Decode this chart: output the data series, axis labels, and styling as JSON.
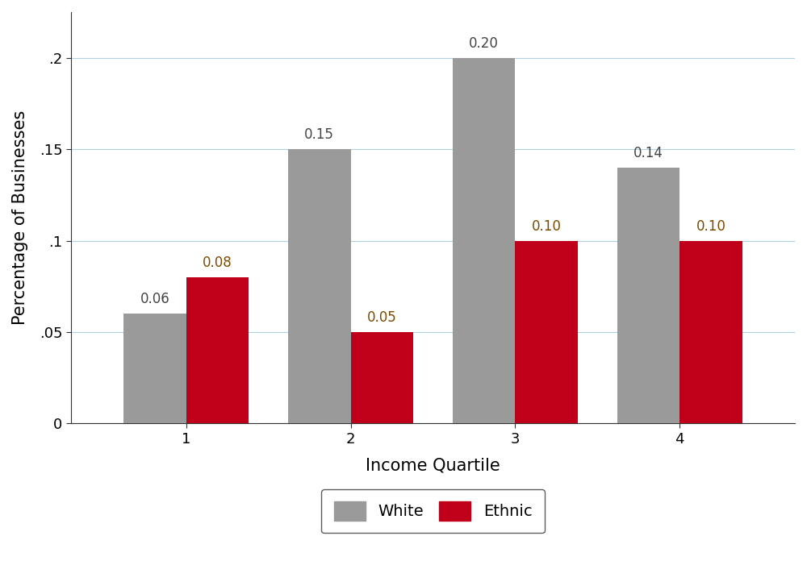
{
  "categories": [
    1,
    2,
    3,
    4
  ],
  "white_values": [
    0.06,
    0.15,
    0.2,
    0.14
  ],
  "ethnic_values": [
    0.08,
    0.05,
    0.1,
    0.1
  ],
  "white_color": "#9A9A9A",
  "ethnic_color": "#C0001A",
  "xlabel": "Income Quartile",
  "ylabel": "Percentage of Businesses",
  "ylim": [
    0,
    0.225
  ],
  "yticks": [
    0,
    0.05,
    0.1,
    0.15,
    0.2
  ],
  "ytick_labels": [
    "0",
    ".05",
    ".1",
    ".15",
    ".2"
  ],
  "bar_width": 0.38,
  "legend_labels": [
    "White",
    "Ethnic"
  ],
  "label_fontsize": 15,
  "tick_fontsize": 13,
  "annotation_fontsize": 12,
  "white_label_color": "#444444",
  "ethnic_label_color": "#7B4A00",
  "background_color": "#ffffff",
  "grid_color": "#afd0e0",
  "legend_fontsize": 14
}
